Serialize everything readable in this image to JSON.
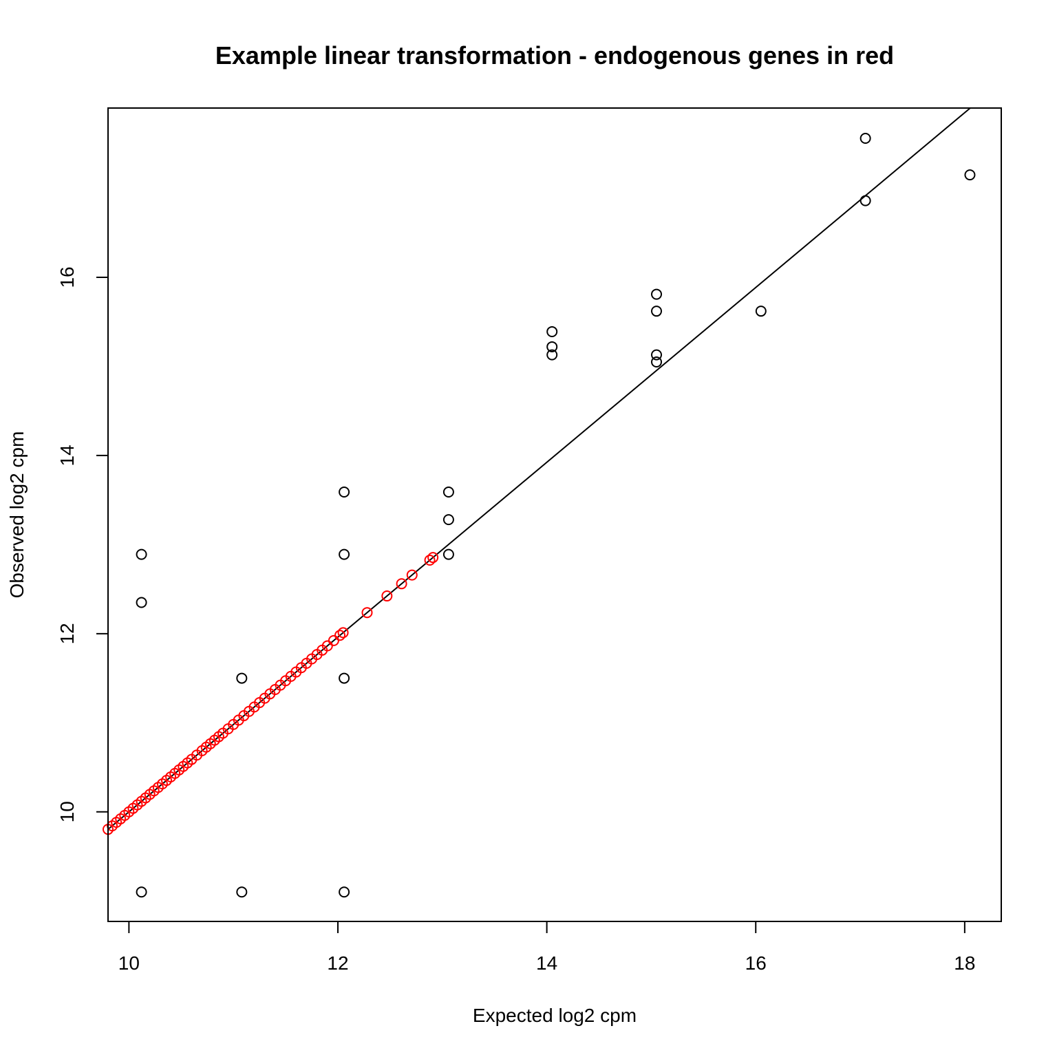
{
  "chart_data": {
    "type": "scatter",
    "title": "Example linear transformation - endogenous genes in red",
    "xlabel": "Expected log2 cpm",
    "ylabel": "Observed log2 cpm",
    "xlim": [
      9.8,
      18.35
    ],
    "ylim": [
      8.77,
      17.9
    ],
    "xticks": [
      10,
      12,
      14,
      16,
      18
    ],
    "yticks": [
      10,
      12,
      14,
      16
    ],
    "grid": false,
    "legend": "none",
    "fit_line": {
      "slope": 0.981,
      "intercept": 0.19,
      "color": "#000000"
    },
    "series": [
      {
        "color": "#000000",
        "points": [
          [
            10.12,
            12.89
          ],
          [
            10.12,
            12.35
          ],
          [
            10.12,
            9.1
          ],
          [
            11.08,
            11.5
          ],
          [
            11.08,
            9.1
          ],
          [
            12.06,
            13.59
          ],
          [
            12.06,
            12.89
          ],
          [
            12.06,
            11.5
          ],
          [
            12.06,
            9.1
          ],
          [
            13.06,
            13.59
          ],
          [
            13.06,
            13.28
          ],
          [
            13.06,
            12.89
          ],
          [
            14.05,
            15.39
          ],
          [
            14.05,
            15.22
          ],
          [
            14.05,
            15.13
          ],
          [
            15.05,
            15.81
          ],
          [
            15.05,
            15.62
          ],
          [
            15.05,
            15.13
          ],
          [
            15.05,
            15.05
          ],
          [
            16.05,
            15.62
          ],
          [
            17.05,
            17.56
          ],
          [
            17.05,
            16.86
          ],
          [
            18.05,
            17.15
          ]
        ]
      },
      {
        "color": "#ff0000",
        "x": [
          9.8,
          9.84,
          9.88,
          9.92,
          9.96,
          10.0,
          10.04,
          10.08,
          10.12,
          10.16,
          10.2,
          10.24,
          10.28,
          10.32,
          10.36,
          10.4,
          10.44,
          10.48,
          10.52,
          10.56,
          10.6,
          10.65,
          10.7,
          10.74,
          10.78,
          10.82,
          10.86,
          10.9,
          10.95,
          11.0,
          11.05,
          11.1,
          11.15,
          11.2,
          11.25,
          11.3,
          11.35,
          11.4,
          11.45,
          11.5,
          11.55,
          11.6,
          11.65,
          11.7,
          11.75,
          11.8,
          11.85,
          11.9,
          11.96,
          12.02,
          12.05,
          12.28,
          12.47,
          12.61,
          12.71,
          12.88,
          12.91
        ]
      }
    ]
  }
}
